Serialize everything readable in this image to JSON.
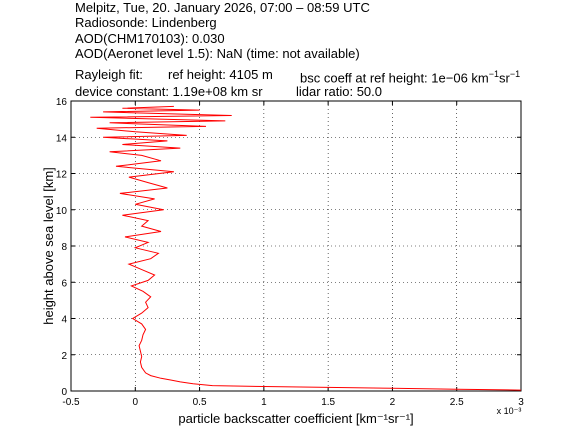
{
  "header": {
    "line1": "Melpitz, Tue, 20. January 2026, 07:00 – 08:59 UTC",
    "line2": "Radiosonde: Lindenberg",
    "line3": "AOD(CHM170103): 0.030",
    "line4": "AOD(Aeronet level 1.5): NaN   (time: not available)",
    "rayleigh_label": "Rayleigh fit:",
    "ref_height": "ref height: 4105 m",
    "bsc_coeff_prefix": "bsc coeff at ref height: 1e−06 km",
    "device_constant": "device constant: 1.19e+08 km sr",
    "lidar_ratio": "lidar ratio: 50.0",
    "unit_exp_neg1": "−1",
    "unit_sr": "sr"
  },
  "chart_data": {
    "type": "line",
    "xlabel": "particle backscatter coefficient [km⁻¹sr⁻¹]",
    "ylabel": "height above sea level [km]",
    "x_multiplier_label": "x 10⁻³",
    "xlim": [
      -0.5,
      3.0
    ],
    "ylim": [
      0,
      16
    ],
    "xticks": [
      -0.5,
      0,
      0.5,
      1,
      1.5,
      2,
      2.5,
      3
    ],
    "xtick_labels": [
      "-0.5",
      "0",
      "0.5",
      "1",
      "1.5",
      "2",
      "2.5",
      "3"
    ],
    "yticks": [
      0,
      2,
      4,
      6,
      8,
      10,
      12,
      14,
      16
    ],
    "ytick_labels": [
      "0",
      "2",
      "4",
      "6",
      "8",
      "10",
      "12",
      "14",
      "16"
    ],
    "grid": true,
    "line_color": "#ff0000",
    "series": [
      {
        "x": [
          3.0,
          2.5,
          2.0,
          1.5,
          1.0,
          0.6,
          0.45,
          0.35,
          0.28,
          0.2,
          0.12,
          0.08,
          0.05,
          0.04,
          0.05,
          0.04,
          0.03,
          0.05,
          0.06,
          0.08,
          0.05,
          -0.02,
          0.05,
          0.1,
          0.08,
          0.12,
          0.06,
          -0.03,
          0.1,
          0.15,
          0.05,
          -0.05,
          0.12,
          0.18,
          0.0,
          0.1,
          -0.08,
          0.2,
          0.05,
          0.1,
          -0.1,
          0.22,
          0.0,
          0.15,
          -0.12,
          0.25,
          0.1,
          -0.05,
          0.3,
          -0.15,
          0.2,
          0.05,
          -0.2,
          0.35,
          -0.1,
          0.25,
          -0.25,
          0.4,
          0.0,
          -0.3,
          0.55,
          -0.2,
          0.7,
          -0.35,
          0.75,
          -0.25,
          0.5,
          -0.1,
          0.3
        ],
        "y": [
          0.05,
          0.1,
          0.15,
          0.2,
          0.25,
          0.3,
          0.4,
          0.5,
          0.6,
          0.7,
          0.85,
          1.0,
          1.3,
          1.6,
          1.9,
          2.2,
          2.5,
          2.8,
          3.1,
          3.4,
          3.7,
          4.0,
          4.3,
          4.6,
          4.9,
          5.2,
          5.5,
          5.8,
          6.1,
          6.4,
          6.7,
          7.0,
          7.3,
          7.6,
          7.9,
          8.2,
          8.5,
          8.8,
          9.1,
          9.4,
          9.7,
          10.0,
          10.3,
          10.6,
          10.9,
          11.2,
          11.5,
          11.8,
          12.1,
          12.4,
          12.7,
          13.0,
          13.2,
          13.4,
          13.6,
          13.8,
          14.0,
          14.1,
          14.3,
          14.5,
          14.6,
          14.8,
          14.9,
          15.1,
          15.2,
          15.4,
          15.5,
          15.6,
          15.7
        ]
      }
    ]
  }
}
